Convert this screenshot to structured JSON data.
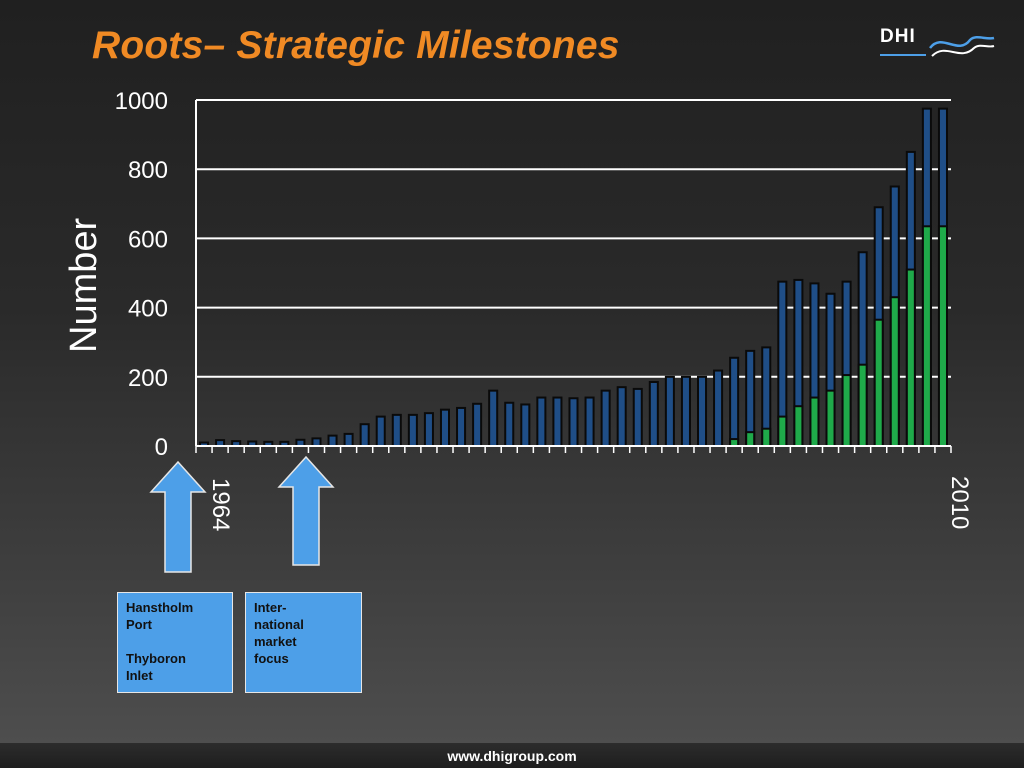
{
  "page": {
    "title": "Roots– Strategic Milestones",
    "logo": {
      "text": "DHI",
      "name": "dhi-logo"
    },
    "footer": "www.dhigroup.com",
    "colors": {
      "title": "#f08a24",
      "total_bar": "#1f4e87",
      "green_bar": "#1faa4a",
      "arrow": "#4d9fe8",
      "grid": "#ffffff"
    }
  },
  "chart_data": {
    "type": "bar",
    "title": "",
    "ylabel": "Number",
    "xlabel": "",
    "ylim": [
      0,
      1000
    ],
    "yticks": [
      "0",
      "200",
      "400",
      "600",
      "800",
      "1000"
    ],
    "grid": true,
    "x_start_label": "1964",
    "x_end_label": "2010",
    "x": [
      1964,
      1965,
      1966,
      1967,
      1968,
      1969,
      1970,
      1971,
      1972,
      1973,
      1974,
      1975,
      1976,
      1977,
      1978,
      1979,
      1980,
      1981,
      1982,
      1983,
      1984,
      1985,
      1986,
      1987,
      1988,
      1989,
      1990,
      1991,
      1992,
      1993,
      1994,
      1995,
      1996,
      1997,
      1998,
      1999,
      2000,
      2001,
      2002,
      2003,
      2004,
      2005,
      2006,
      2007,
      2008,
      2009,
      2010
    ],
    "series": [
      {
        "values": [
          10,
          17,
          14,
          13,
          12,
          12,
          18,
          22,
          30,
          35,
          63,
          85,
          90,
          90,
          95,
          105,
          110,
          122,
          160,
          125,
          120,
          140,
          140,
          138,
          140,
          160,
          170,
          165,
          185,
          200,
          200,
          200,
          218,
          255,
          275,
          285,
          475,
          480,
          470,
          440,
          475,
          560,
          690,
          750,
          850,
          975,
          975
        ]
      },
      {
        "values": [
          0,
          0,
          0,
          0,
          0,
          0,
          0,
          0,
          0,
          0,
          0,
          0,
          0,
          0,
          0,
          0,
          0,
          0,
          0,
          0,
          0,
          0,
          0,
          0,
          0,
          0,
          0,
          0,
          0,
          0,
          0,
          0,
          0,
          20,
          40,
          50,
          85,
          115,
          140,
          160,
          205,
          235,
          365,
          430,
          510,
          635,
          635
        ]
      }
    ]
  },
  "annotations": [
    {
      "name": "hanstholm-note",
      "text": "Hanstholm\nPort\n\nThyboron\nInlet"
    },
    {
      "name": "international-note",
      "text": "Inter-\nnational\nmarket\nfocus"
    }
  ]
}
